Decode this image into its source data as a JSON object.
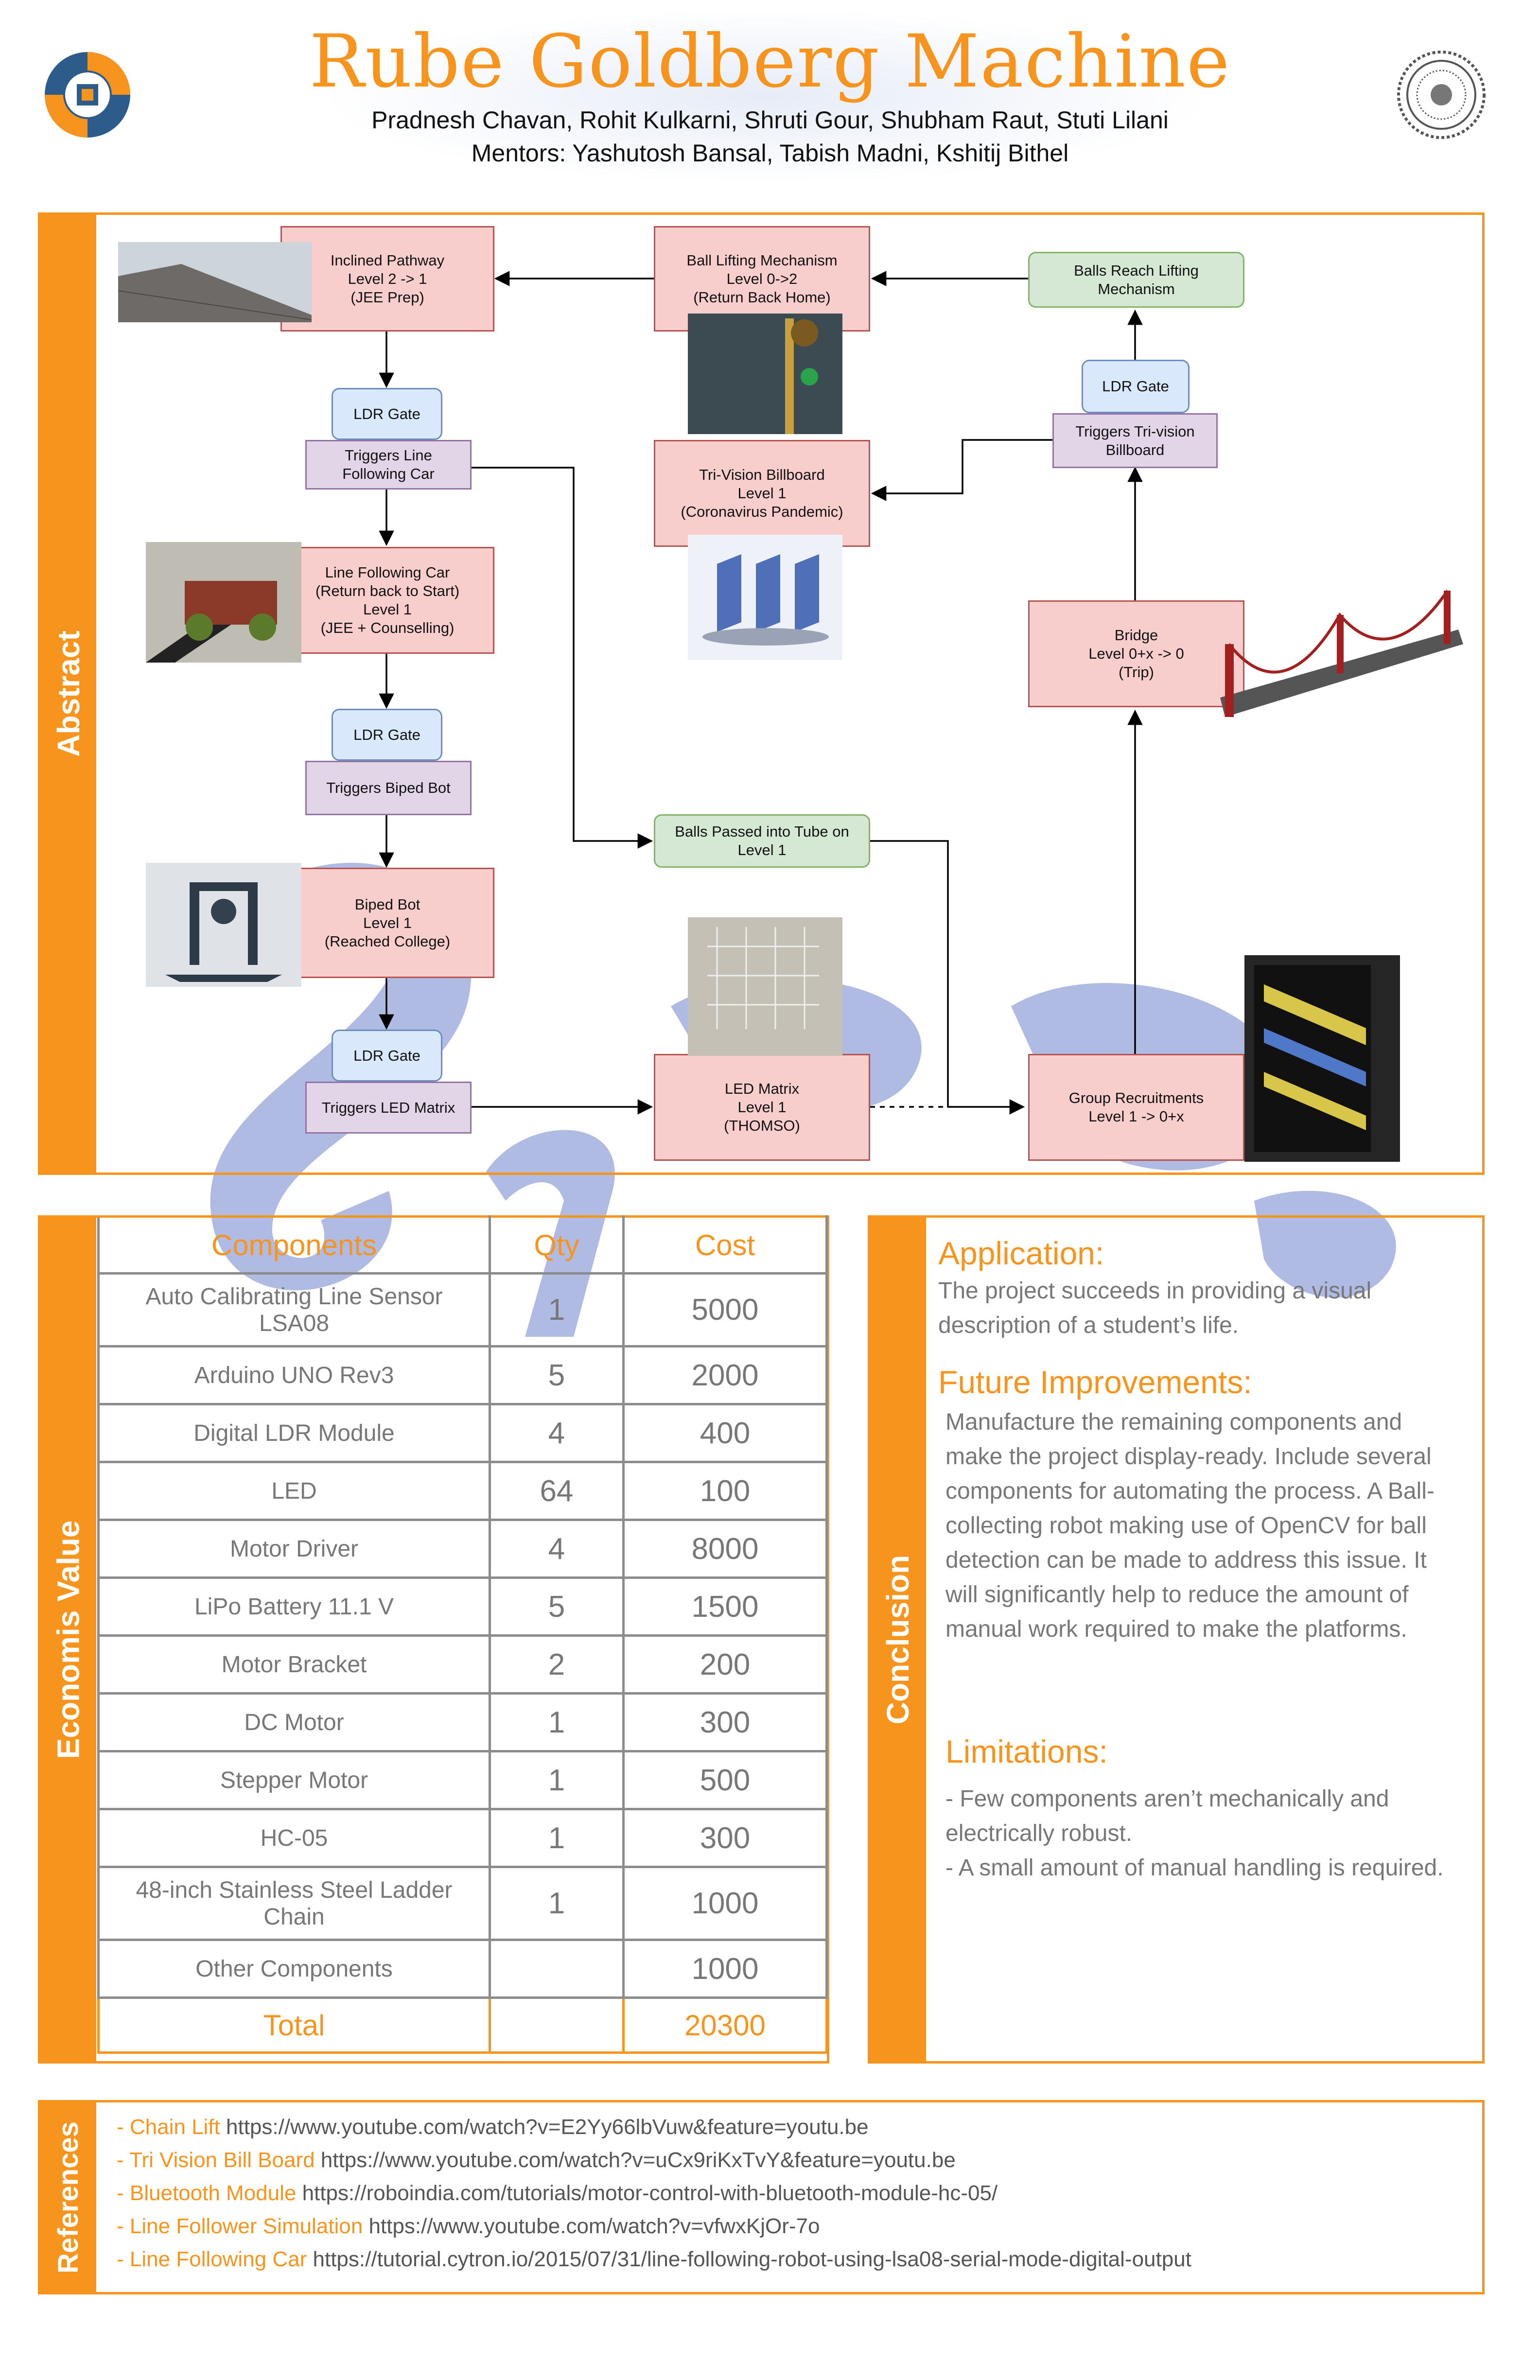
{
  "header": {
    "title": "Rube Goldberg Machine",
    "authors": "Pradnesh Chavan, Rohit Kulkarni, Shruti  Gour, Shubham Raut, Stuti Lilani",
    "mentors": "Mentors: Yashutosh Bansal, Tabish Madni, Kshitij Bithel"
  },
  "colors": {
    "accent": "#F7941D",
    "red_box": "#F8CECC",
    "blue_box": "#DAE8FC",
    "purple_box": "#E1D5E7",
    "green_box": "#D5E8D4"
  },
  "abstract": {
    "label": "Abstract",
    "nodes": {
      "inclined": "Inclined Pathway\nLevel 2 -> 1\n(JEE Prep)",
      "ldr1": "LDR Gate",
      "trig_line": "Triggers Line\nFollowing Car",
      "line_car": "Line Following Car\n(Return back to Start)\nLevel 1\n(JEE + Counselling)",
      "ldr2": "LDR Gate",
      "trig_biped": "Triggers Biped Bot",
      "biped": "Biped Bot\nLevel 1\n(Reached College)",
      "ldr3": "LDR Gate",
      "trig_led": "Triggers LED Matrix",
      "led": "LED Matrix\nLevel 1\n(THOMSO)",
      "balls_tube": "Balls Passed into Tube on\nLevel 1",
      "ball_lift": "Ball Lifting Mechanism\nLevel 0->2\n(Return Back Home)",
      "trivision": "Tri-Vision Billboard\nLevel 1\n(Coronavirus Pandemic)",
      "balls_reach": "Balls Reach Lifting\nMechanism",
      "ldr4": "LDR Gate",
      "trig_tri": "Triggers Tri-vision\nBillboard",
      "bridge": "Bridge\nLevel 0+x -> 0\n(Trip)",
      "group": "Group Recruitments\nLevel 1 -> 0+x"
    }
  },
  "economics": {
    "label": "Economis Value",
    "headers": [
      "Components",
      "Qty",
      "Cost"
    ],
    "rows": [
      [
        "Auto Calibrating Line Sensor LSA08",
        "1",
        "5000"
      ],
      [
        "Arduino UNO Rev3",
        "5",
        "2000"
      ],
      [
        "Digital LDR Module",
        "4",
        "400"
      ],
      [
        "LED",
        "64",
        "100"
      ],
      [
        "Motor Driver",
        "4",
        "8000"
      ],
      [
        "LiPo Battery 11.1  V",
        "5",
        "1500"
      ],
      [
        "Motor Bracket",
        "2",
        "200"
      ],
      [
        "DC Motor",
        "1",
        "300"
      ],
      [
        "Stepper Motor",
        "1",
        "500"
      ],
      [
        "HC-05",
        "1",
        "300"
      ],
      [
        "48-inch Stainless Steel Ladder Chain",
        "1",
        "1000"
      ],
      [
        "Other Components",
        "",
        "1000"
      ]
    ],
    "total_label": "Total",
    "total_value": "20300"
  },
  "conclusion": {
    "label": "Conclusion",
    "application_title": "Application:",
    "application_text": "The project succeeds in providing a visual description of a student’s life.",
    "future_title": "Future Improvements:",
    "future_text": "Manufacture the remaining components and make the project display-ready. Include several components for automating the process. A Ball-collecting robot making use of OpenCV for ball detection can be made to address this issue. It will significantly help to reduce the amount of manual work required to make the platforms.",
    "limitations_title": "Limitations:",
    "limitations_text": "- Few components aren’t mechanically and electrically robust.\n- A small amount of manual handling is required."
  },
  "references": {
    "label": "References",
    "items": [
      {
        "name": "- Chain Lift",
        "url": "https://www.youtube.com/watch?v=E2Yy66lbVuw&feature=youtu.be"
      },
      {
        "name": "- Tri Vision Bill Board",
        "url": "https://www.youtube.com/watch?v=uCx9riKxTvY&feature=youtu.be"
      },
      {
        "name": "- Bluetooth Module",
        "url": "https://roboindia.com/tutorials/motor-control-with-bluetooth-module-hc-05/"
      },
      {
        "name": "- Line Follower Simulation",
        "url": "https://www.youtube.com/watch?v=vfwxKjOr-7o"
      },
      {
        "name": "- Line Following Car",
        "url": "https://tutorial.cytron.io/2015/07/31/line-following-robot-using-lsa08-serial-mode-digital-output"
      }
    ]
  }
}
